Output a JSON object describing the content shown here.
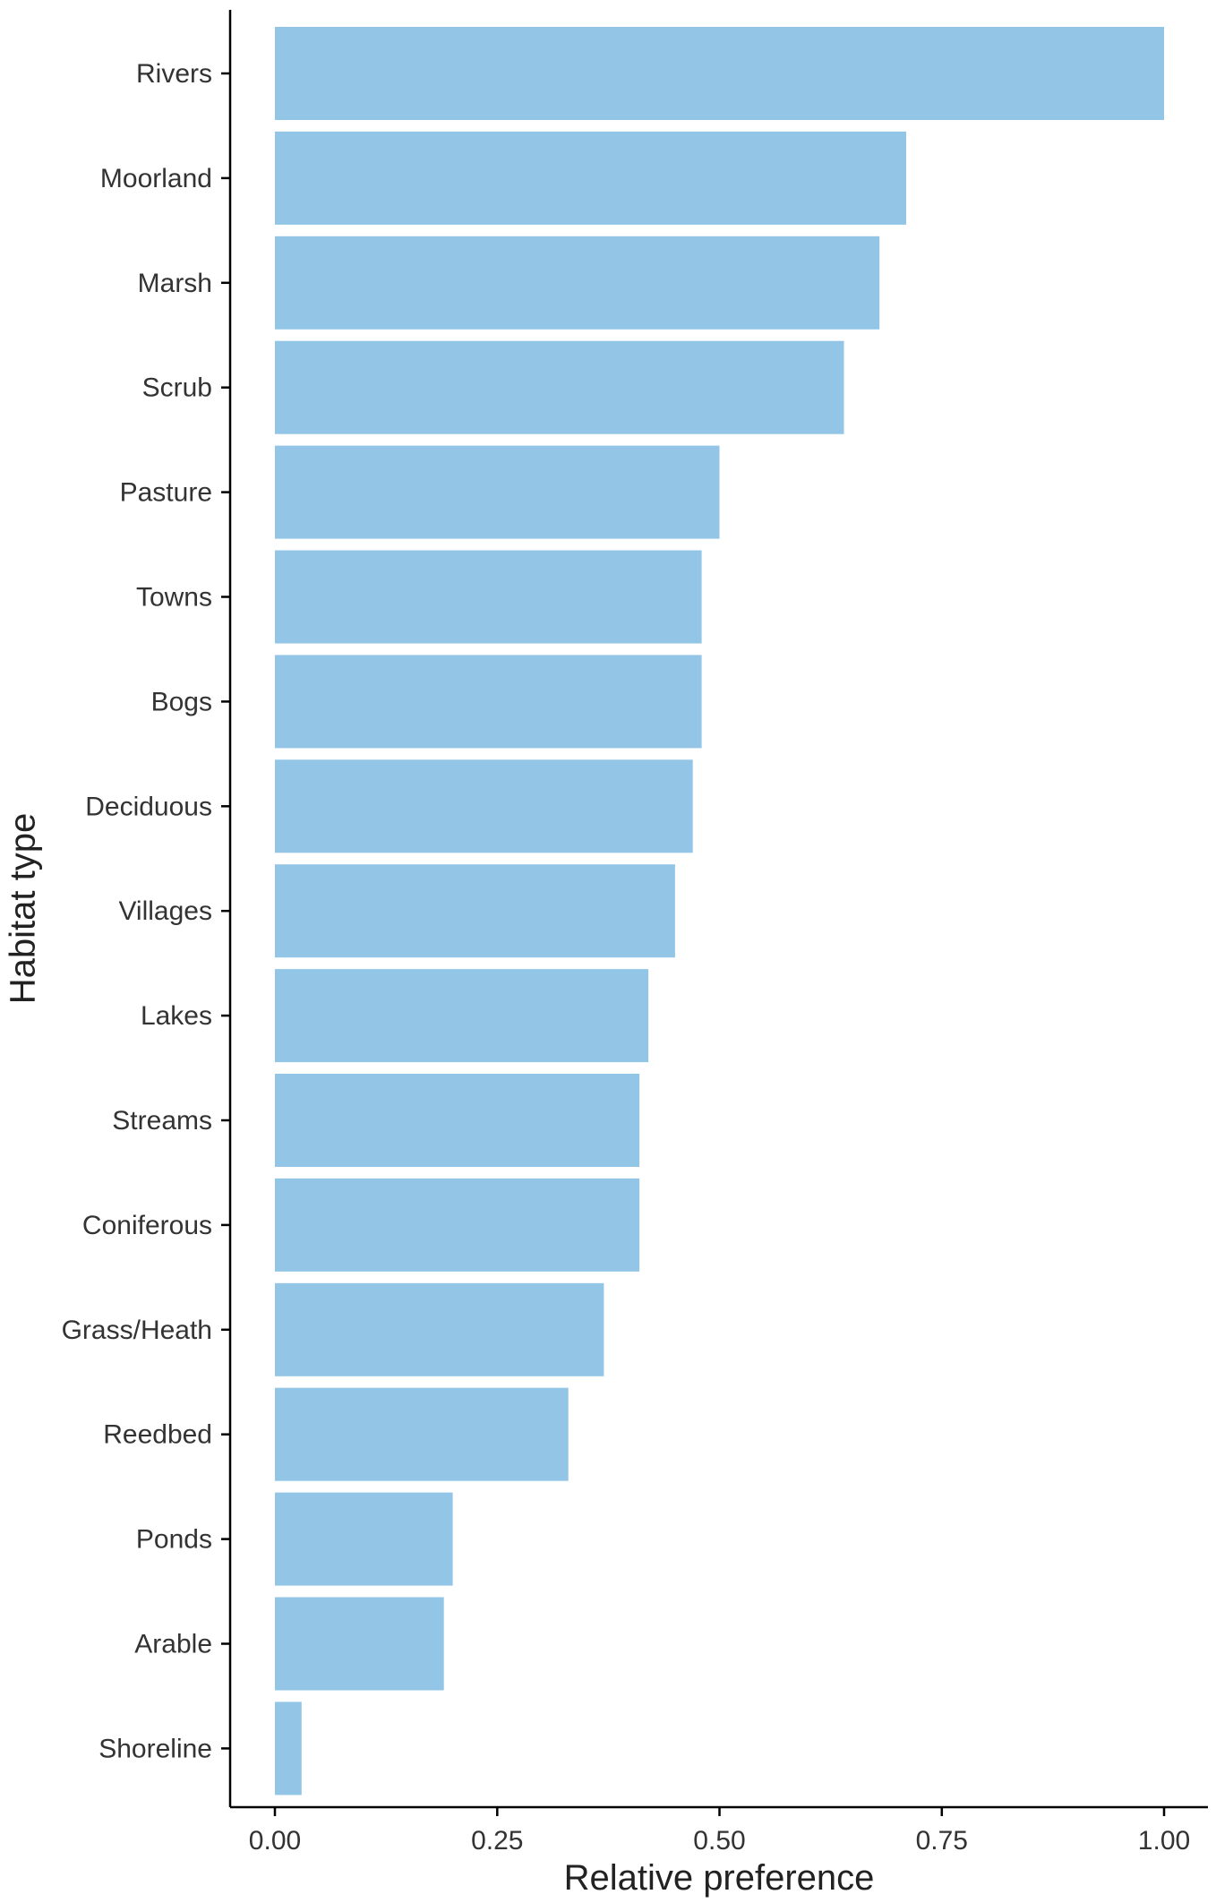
{
  "chart_data": {
    "type": "bar",
    "orientation": "horizontal",
    "title": "",
    "xlabel": "Relative preference",
    "ylabel": "Habitat type",
    "xlim": [
      0,
      1
    ],
    "x_ticks": [
      "0.00",
      "0.25",
      "0.50",
      "0.75",
      "1.00"
    ],
    "x_tick_values": [
      0,
      0.25,
      0.5,
      0.75,
      1.0
    ],
    "categories": [
      "Rivers",
      "Moorland",
      "Marsh",
      "Scrub",
      "Pasture",
      "Towns",
      "Bogs",
      "Deciduous",
      "Villages",
      "Lakes",
      "Streams",
      "Coniferous",
      "Grass/Heath",
      "Reedbed",
      "Ponds",
      "Arable",
      "Shoreline"
    ],
    "values": [
      1.0,
      0.71,
      0.68,
      0.64,
      0.5,
      0.48,
      0.48,
      0.47,
      0.45,
      0.42,
      0.41,
      0.41,
      0.37,
      0.33,
      0.2,
      0.19,
      0.03
    ],
    "grid": false,
    "legend": "none",
    "colors": {
      "bar": "#93c6e6",
      "axis": "#000000",
      "text": "#333333"
    }
  }
}
